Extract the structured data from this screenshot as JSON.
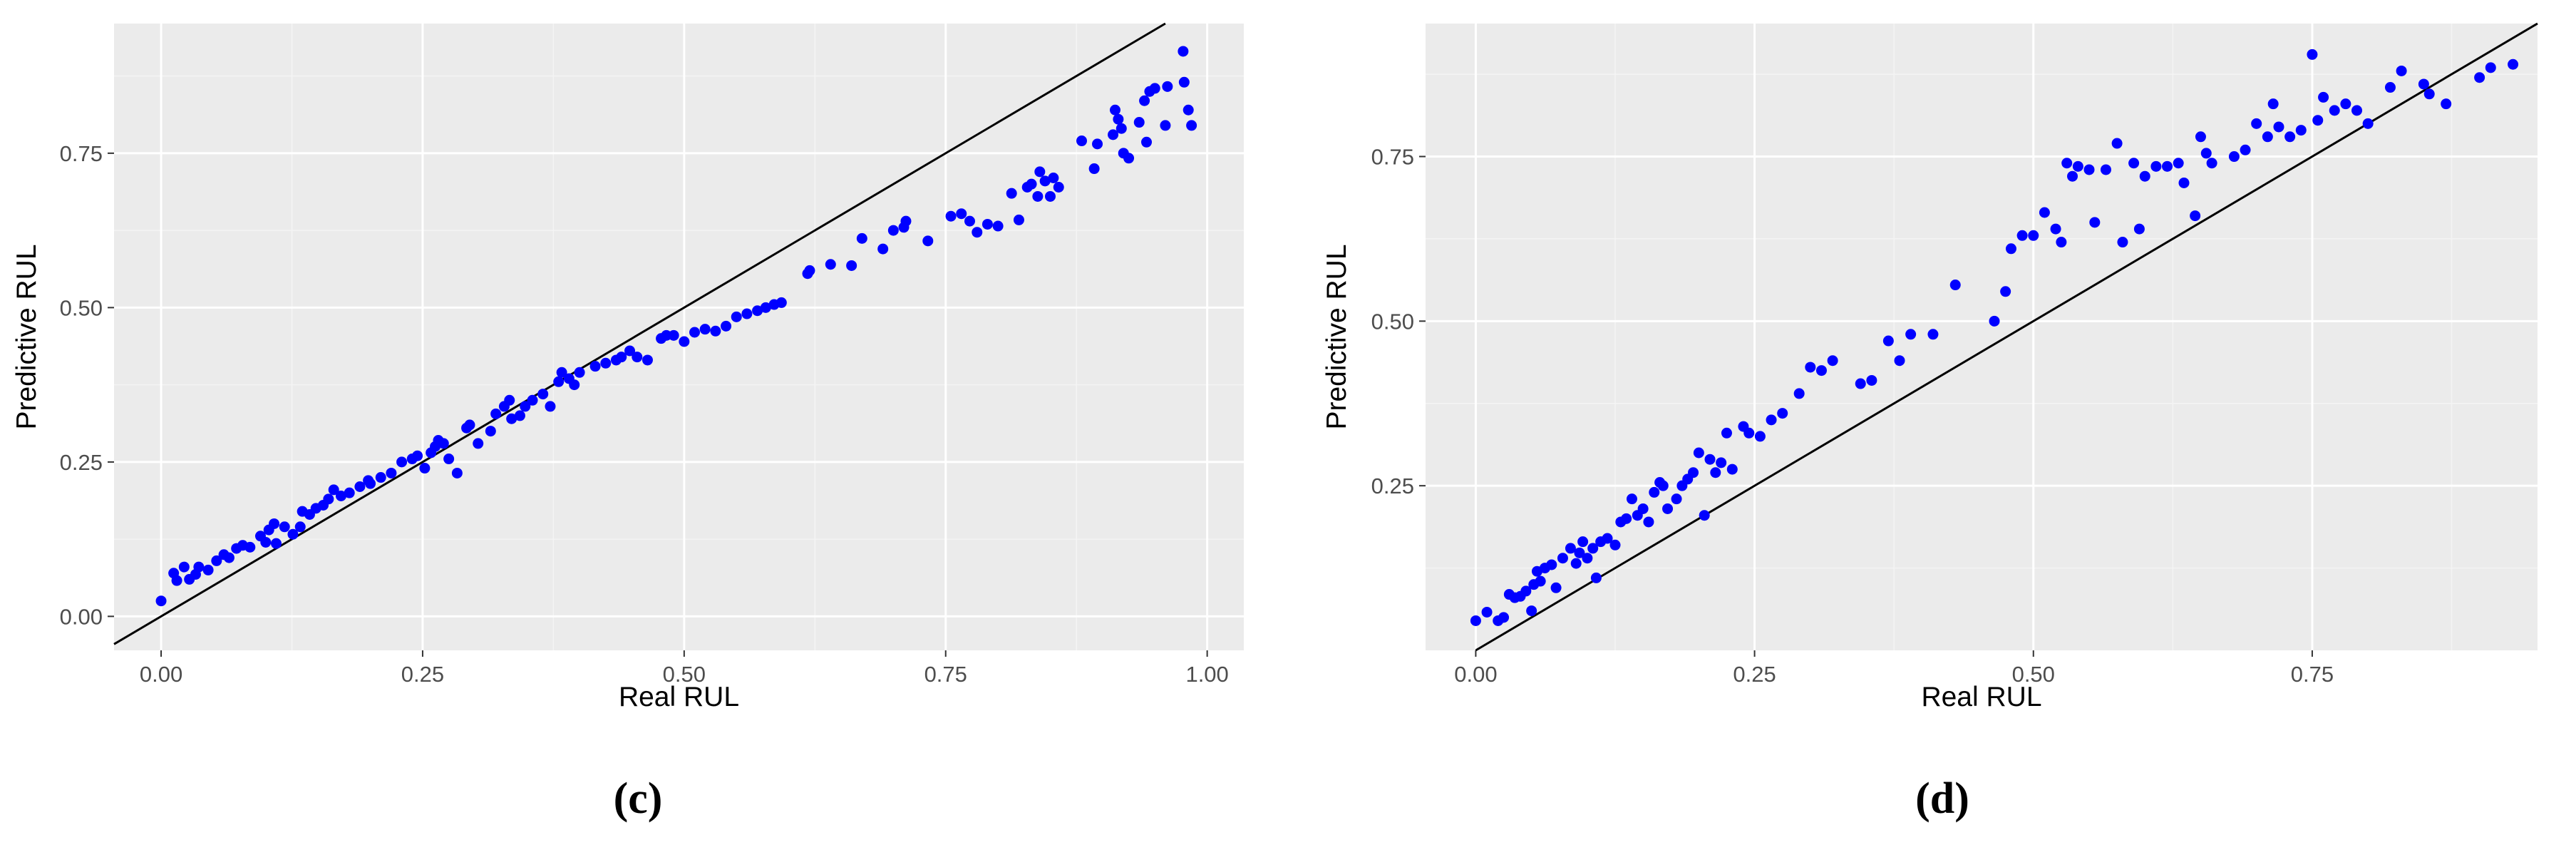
{
  "colors": {
    "panel_bg": "#ebebeb",
    "grid_major": "#ffffff",
    "grid_minor": "#f4f4f4",
    "point": "#0000ff",
    "reference_line": "#000000",
    "tick_text": "#4d4d4d"
  },
  "captions": {
    "c": "(c)",
    "d": "(d)"
  },
  "chart_data": [
    {
      "type": "scatter",
      "panel": "c",
      "xlabel": "Real RUL",
      "ylabel": "Predictive RUL",
      "xlim": [
        -0.045,
        1.035
      ],
      "ylim": [
        -0.055,
        0.96
      ],
      "x_ticks": [
        0.0,
        0.25,
        0.5,
        0.75,
        1.0
      ],
      "x_tick_labels": [
        "0.00",
        "0.25",
        "0.50",
        "0.75",
        "1.00"
      ],
      "y_ticks": [
        0.0,
        0.25,
        0.5,
        0.75
      ],
      "y_tick_labels": [
        "0.00",
        "0.25",
        "0.50",
        "0.75"
      ],
      "grid": true,
      "reference_line": "y = x",
      "points": [
        [
          0.0,
          0.025
        ],
        [
          0.012,
          0.07
        ],
        [
          0.015,
          0.058
        ],
        [
          0.022,
          0.08
        ],
        [
          0.027,
          0.06
        ],
        [
          0.033,
          0.068
        ],
        [
          0.036,
          0.08
        ],
        [
          0.045,
          0.075
        ],
        [
          0.053,
          0.09
        ],
        [
          0.06,
          0.1
        ],
        [
          0.065,
          0.095
        ],
        [
          0.072,
          0.11
        ],
        [
          0.078,
          0.115
        ],
        [
          0.085,
          0.112
        ],
        [
          0.095,
          0.13
        ],
        [
          0.1,
          0.12
        ],
        [
          0.103,
          0.14
        ],
        [
          0.108,
          0.15
        ],
        [
          0.11,
          0.118
        ],
        [
          0.118,
          0.145
        ],
        [
          0.126,
          0.133
        ],
        [
          0.133,
          0.145
        ],
        [
          0.135,
          0.17
        ],
        [
          0.142,
          0.165
        ],
        [
          0.148,
          0.175
        ],
        [
          0.155,
          0.18
        ],
        [
          0.16,
          0.19
        ],
        [
          0.165,
          0.205
        ],
        [
          0.172,
          0.195
        ],
        [
          0.18,
          0.2
        ],
        [
          0.19,
          0.21
        ],
        [
          0.198,
          0.22
        ],
        [
          0.2,
          0.215
        ],
        [
          0.21,
          0.225
        ],
        [
          0.22,
          0.232
        ],
        [
          0.23,
          0.25
        ],
        [
          0.24,
          0.255
        ],
        [
          0.245,
          0.26
        ],
        [
          0.252,
          0.24
        ],
        [
          0.258,
          0.265
        ],
        [
          0.262,
          0.275
        ],
        [
          0.265,
          0.285
        ],
        [
          0.27,
          0.28
        ],
        [
          0.275,
          0.255
        ],
        [
          0.283,
          0.232
        ],
        [
          0.292,
          0.305
        ],
        [
          0.295,
          0.31
        ],
        [
          0.303,
          0.28
        ],
        [
          0.315,
          0.3
        ],
        [
          0.32,
          0.328
        ],
        [
          0.328,
          0.34
        ],
        [
          0.333,
          0.35
        ],
        [
          0.335,
          0.32
        ],
        [
          0.343,
          0.325
        ],
        [
          0.348,
          0.34
        ],
        [
          0.355,
          0.35
        ],
        [
          0.365,
          0.36
        ],
        [
          0.372,
          0.34
        ],
        [
          0.38,
          0.38
        ],
        [
          0.383,
          0.395
        ],
        [
          0.39,
          0.385
        ],
        [
          0.395,
          0.375
        ],
        [
          0.4,
          0.395
        ],
        [
          0.415,
          0.405
        ],
        [
          0.425,
          0.41
        ],
        [
          0.435,
          0.415
        ],
        [
          0.44,
          0.42
        ],
        [
          0.448,
          0.43
        ],
        [
          0.455,
          0.42
        ],
        [
          0.465,
          0.415
        ],
        [
          0.478,
          0.45
        ],
        [
          0.483,
          0.455
        ],
        [
          0.49,
          0.455
        ],
        [
          0.5,
          0.445
        ],
        [
          0.51,
          0.46
        ],
        [
          0.52,
          0.465
        ],
        [
          0.53,
          0.462
        ],
        [
          0.54,
          0.47
        ],
        [
          0.55,
          0.485
        ],
        [
          0.56,
          0.49
        ],
        [
          0.57,
          0.495
        ],
        [
          0.578,
          0.5
        ],
        [
          0.586,
          0.505
        ],
        [
          0.593,
          0.508
        ],
        [
          0.618,
          0.555
        ],
        [
          0.62,
          0.56
        ],
        [
          0.64,
          0.57
        ],
        [
          0.66,
          0.568
        ],
        [
          0.67,
          0.612
        ],
        [
          0.69,
          0.595
        ],
        [
          0.7,
          0.625
        ],
        [
          0.71,
          0.63
        ],
        [
          0.712,
          0.64
        ],
        [
          0.733,
          0.608
        ],
        [
          0.755,
          0.648
        ],
        [
          0.765,
          0.652
        ],
        [
          0.773,
          0.64
        ],
        [
          0.78,
          0.622
        ],
        [
          0.79,
          0.635
        ],
        [
          0.8,
          0.632
        ],
        [
          0.813,
          0.685
        ],
        [
          0.82,
          0.642
        ],
        [
          0.828,
          0.695
        ],
        [
          0.832,
          0.7
        ],
        [
          0.838,
          0.68
        ],
        [
          0.84,
          0.72
        ],
        [
          0.845,
          0.705
        ],
        [
          0.85,
          0.68
        ],
        [
          0.853,
          0.71
        ],
        [
          0.858,
          0.695
        ],
        [
          0.88,
          0.77
        ],
        [
          0.892,
          0.725
        ],
        [
          0.895,
          0.765
        ],
        [
          0.91,
          0.78
        ],
        [
          0.912,
          0.82
        ],
        [
          0.915,
          0.805
        ],
        [
          0.918,
          0.79
        ],
        [
          0.92,
          0.75
        ],
        [
          0.925,
          0.742
        ],
        [
          0.935,
          0.8
        ],
        [
          0.94,
          0.835
        ],
        [
          0.942,
          0.768
        ],
        [
          0.945,
          0.85
        ],
        [
          0.95,
          0.855
        ],
        [
          0.96,
          0.795
        ],
        [
          0.962,
          0.858
        ],
        [
          0.977,
          0.915
        ],
        [
          0.978,
          0.865
        ],
        [
          0.982,
          0.82
        ],
        [
          0.985,
          0.795
        ]
      ]
    },
    {
      "type": "scatter",
      "panel": "d",
      "xlabel": "Real RUL",
      "ylabel": "Predictive RUL",
      "xlim": [
        -0.045,
        0.952
      ],
      "ylim": [
        0.0,
        0.952
      ],
      "x_ticks": [
        0.0,
        0.25,
        0.5,
        0.75
      ],
      "x_tick_labels": [
        "0.00",
        "0.25",
        "0.50",
        "0.75"
      ],
      "y_ticks": [
        0.25,
        0.5,
        0.75
      ],
      "y_tick_labels": [
        "0.25",
        "0.50",
        "0.75"
      ],
      "grid": true,
      "reference_line": "y = x",
      "points": [
        [
          0.0,
          0.045
        ],
        [
          0.01,
          0.058
        ],
        [
          0.02,
          0.045
        ],
        [
          0.025,
          0.05
        ],
        [
          0.03,
          0.085
        ],
        [
          0.035,
          0.08
        ],
        [
          0.04,
          0.082
        ],
        [
          0.045,
          0.09
        ],
        [
          0.05,
          0.06
        ],
        [
          0.052,
          0.1
        ],
        [
          0.055,
          0.12
        ],
        [
          0.058,
          0.105
        ],
        [
          0.062,
          0.125
        ],
        [
          0.068,
          0.13
        ],
        [
          0.072,
          0.095
        ],
        [
          0.078,
          0.14
        ],
        [
          0.085,
          0.155
        ],
        [
          0.09,
          0.132
        ],
        [
          0.093,
          0.148
        ],
        [
          0.096,
          0.165
        ],
        [
          0.1,
          0.14
        ],
        [
          0.105,
          0.155
        ],
        [
          0.108,
          0.11
        ],
        [
          0.112,
          0.165
        ],
        [
          0.118,
          0.17
        ],
        [
          0.125,
          0.16
        ],
        [
          0.13,
          0.195
        ],
        [
          0.135,
          0.2
        ],
        [
          0.14,
          0.23
        ],
        [
          0.145,
          0.205
        ],
        [
          0.15,
          0.215
        ],
        [
          0.155,
          0.195
        ],
        [
          0.16,
          0.24
        ],
        [
          0.165,
          0.255
        ],
        [
          0.168,
          0.25
        ],
        [
          0.172,
          0.215
        ],
        [
          0.18,
          0.23
        ],
        [
          0.185,
          0.25
        ],
        [
          0.19,
          0.26
        ],
        [
          0.195,
          0.27
        ],
        [
          0.2,
          0.3
        ],
        [
          0.205,
          0.205
        ],
        [
          0.21,
          0.29
        ],
        [
          0.215,
          0.27
        ],
        [
          0.22,
          0.285
        ],
        [
          0.225,
          0.33
        ],
        [
          0.23,
          0.275
        ],
        [
          0.24,
          0.34
        ],
        [
          0.245,
          0.33
        ],
        [
          0.255,
          0.325
        ],
        [
          0.265,
          0.35
        ],
        [
          0.275,
          0.36
        ],
        [
          0.29,
          0.39
        ],
        [
          0.3,
          0.43
        ],
        [
          0.31,
          0.425
        ],
        [
          0.32,
          0.44
        ],
        [
          0.345,
          0.405
        ],
        [
          0.355,
          0.41
        ],
        [
          0.37,
          0.47
        ],
        [
          0.38,
          0.44
        ],
        [
          0.39,
          0.48
        ],
        [
          0.41,
          0.48
        ],
        [
          0.43,
          0.555
        ],
        [
          0.465,
          0.5
        ],
        [
          0.475,
          0.545
        ],
        [
          0.48,
          0.61
        ],
        [
          0.49,
          0.63
        ],
        [
          0.5,
          0.63
        ],
        [
          0.51,
          0.665
        ],
        [
          0.52,
          0.64
        ],
        [
          0.525,
          0.62
        ],
        [
          0.53,
          0.74
        ],
        [
          0.535,
          0.72
        ],
        [
          0.54,
          0.735
        ],
        [
          0.55,
          0.73
        ],
        [
          0.555,
          0.65
        ],
        [
          0.565,
          0.73
        ],
        [
          0.575,
          0.77
        ],
        [
          0.58,
          0.62
        ],
        [
          0.59,
          0.74
        ],
        [
          0.595,
          0.64
        ],
        [
          0.6,
          0.72
        ],
        [
          0.61,
          0.735
        ],
        [
          0.62,
          0.735
        ],
        [
          0.63,
          0.74
        ],
        [
          0.635,
          0.71
        ],
        [
          0.645,
          0.66
        ],
        [
          0.65,
          0.78
        ],
        [
          0.655,
          0.755
        ],
        [
          0.66,
          0.74
        ],
        [
          0.68,
          0.75
        ],
        [
          0.69,
          0.76
        ],
        [
          0.7,
          0.8
        ],
        [
          0.71,
          0.78
        ],
        [
          0.715,
          0.83
        ],
        [
          0.72,
          0.795
        ],
        [
          0.73,
          0.78
        ],
        [
          0.74,
          0.79
        ],
        [
          0.75,
          0.905
        ],
        [
          0.755,
          0.805
        ],
        [
          0.76,
          0.84
        ],
        [
          0.77,
          0.82
        ],
        [
          0.78,
          0.83
        ],
        [
          0.79,
          0.82
        ],
        [
          0.8,
          0.8
        ],
        [
          0.82,
          0.855
        ],
        [
          0.83,
          0.88
        ],
        [
          0.85,
          0.86
        ],
        [
          0.855,
          0.845
        ],
        [
          0.87,
          0.83
        ],
        [
          0.9,
          0.87
        ],
        [
          0.91,
          0.885
        ],
        [
          0.93,
          0.89
        ]
      ]
    }
  ]
}
